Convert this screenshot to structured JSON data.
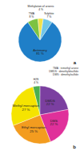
{
  "chart_data": [
    {
      "type": "pie",
      "title": "a",
      "categories": [
        "TMA",
        "Methylation of arsenic",
        "Sulphite",
        "Antimony"
      ],
      "values": [
        8,
        4,
        7,
        81
      ],
      "value_labels": [
        "8 %",
        "4 %",
        "7 %",
        "81 %"
      ],
      "colors": [
        "#7dc242",
        "#f2e24a",
        "#6fc6e8",
        "#1f7fc8"
      ],
      "data_labels": true,
      "annotations": [
        "TMA : trimethyl arsine",
        "DMDS : dimethyldisulfide",
        "DMS : dimethylsulfide"
      ]
    },
    {
      "type": "pie",
      "title": "b",
      "categories": [
        "H2S",
        "DMDS",
        "DMS",
        "Ethyl mercaptan",
        "Methyl mercaptan"
      ],
      "values": [
        4,
        22,
        22,
        25,
        27
      ],
      "value_labels": [
        "4 %",
        "22 %",
        "22 %",
        "25 %",
        "27 %"
      ],
      "colors": [
        "#4caf50",
        "#7b3fa0",
        "#e0309a",
        "#f39c1f",
        "#f5e400"
      ],
      "data_labels": true
    }
  ]
}
